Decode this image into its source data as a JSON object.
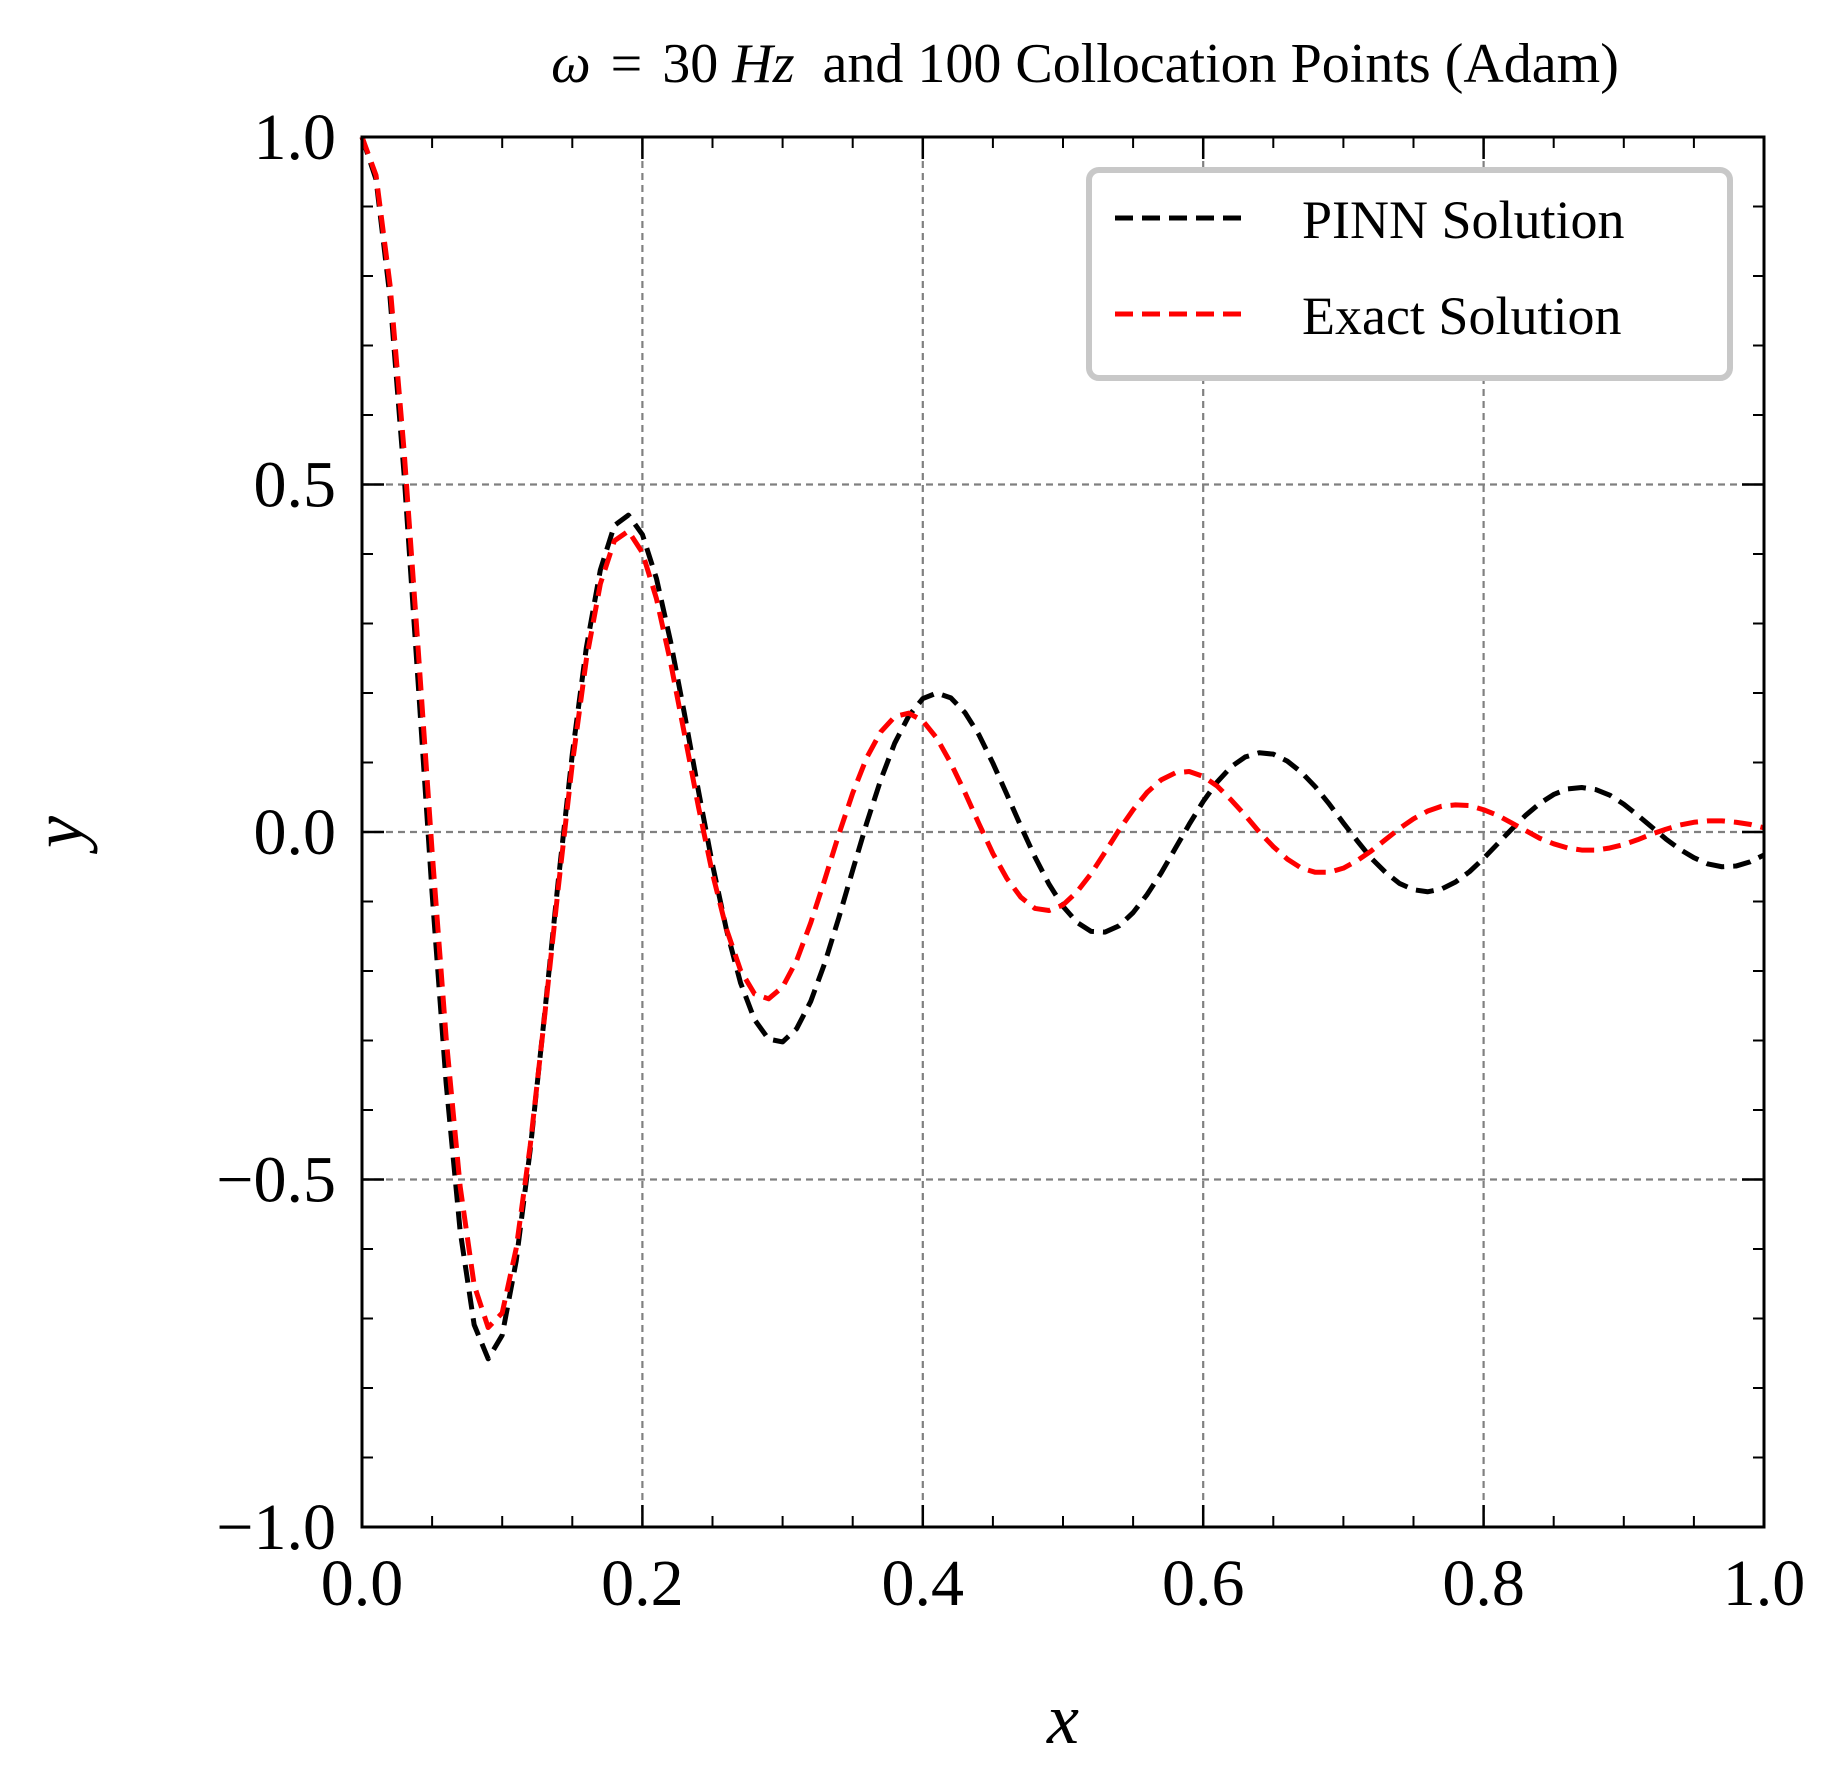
{
  "chart_data": {
    "type": "line",
    "title_parts": {
      "omega": "ω",
      "equals": "=",
      "value": "30",
      "unit": "Hz",
      "rest": "and 100 Collocation Points (Adam)"
    },
    "xlabel": "x",
    "ylabel": "y",
    "xlim": [
      0,
      1
    ],
    "ylim": [
      -1,
      1
    ],
    "x_ticks": [
      "0.0",
      "0.2",
      "0.4",
      "0.6",
      "0.8",
      "1.0"
    ],
    "y_ticks": [
      "1.0",
      "0.5",
      "0.0",
      "−0.5",
      "−1.0"
    ],
    "grid": true,
    "legend_position": "top-right",
    "series": [
      {
        "name": "PINN Solution",
        "color": "#000000",
        "style": "dashed",
        "x": [
          0,
          0.01,
          0.02,
          0.03,
          0.04,
          0.05,
          0.06,
          0.07,
          0.08,
          0.09,
          0.1,
          0.11,
          0.12,
          0.13,
          0.14,
          0.15,
          0.16,
          0.17,
          0.18,
          0.19,
          0.2,
          0.21,
          0.22,
          0.23,
          0.24,
          0.25,
          0.26,
          0.27,
          0.28,
          0.29,
          0.3,
          0.31,
          0.32,
          0.33,
          0.34,
          0.35,
          0.36,
          0.37,
          0.38,
          0.39,
          0.4,
          0.41,
          0.42,
          0.43,
          0.44,
          0.45,
          0.46,
          0.47,
          0.48,
          0.49,
          0.5,
          0.51,
          0.52,
          0.53,
          0.54,
          0.55,
          0.56,
          0.57,
          0.58,
          0.59,
          0.6,
          0.61,
          0.62,
          0.63,
          0.64,
          0.65,
          0.66,
          0.67,
          0.68,
          0.69,
          0.7,
          0.71,
          0.72,
          0.73,
          0.74,
          0.75,
          0.76,
          0.77,
          0.78,
          0.79,
          0.8,
          0.81,
          0.82,
          0.83,
          0.84,
          0.85,
          0.86,
          0.87,
          0.88,
          0.89,
          0.9,
          0.91,
          0.92,
          0.93,
          0.94,
          0.95,
          0.96,
          0.97,
          0.98,
          0.99,
          1.0
        ],
        "y": [
          1.0,
          0.939,
          0.769,
          0.515,
          0.216,
          -0.088,
          -0.361,
          -0.574,
          -0.709,
          -0.758,
          -0.724,
          -0.617,
          -0.457,
          -0.267,
          -0.07,
          0.112,
          0.265,
          0.377,
          0.441,
          0.456,
          0.428,
          0.365,
          0.275,
          0.17,
          0.059,
          -0.047,
          -0.141,
          -0.217,
          -0.27,
          -0.298,
          -0.302,
          -0.283,
          -0.244,
          -0.189,
          -0.124,
          -0.055,
          0.013,
          0.075,
          0.128,
          0.167,
          0.192,
          0.2,
          0.193,
          0.172,
          0.14,
          0.099,
          0.054,
          0.008,
          -0.036,
          -0.075,
          -0.107,
          -0.13,
          -0.143,
          -0.144,
          -0.135,
          -0.116,
          -0.09,
          -0.059,
          -0.024,
          0.011,
          0.044,
          0.072,
          0.094,
          0.108,
          0.114,
          0.112,
          0.102,
          0.086,
          0.065,
          0.04,
          0.013,
          -0.013,
          -0.038,
          -0.058,
          -0.074,
          -0.083,
          -0.086,
          -0.082,
          -0.072,
          -0.057,
          -0.038,
          -0.017,
          0.004,
          0.024,
          0.041,
          0.054,
          0.062,
          0.064,
          0.061,
          0.053,
          0.04,
          0.024,
          0.007,
          -0.01,
          -0.025,
          -0.037,
          -0.046,
          -0.05,
          -0.049,
          -0.043,
          -0.033
        ]
      },
      {
        "name": "Exact Solution",
        "color": "#ff0000",
        "style": "dashed",
        "x": [
          0,
          0.01,
          0.02,
          0.03,
          0.04,
          0.05,
          0.06,
          0.07,
          0.08,
          0.09,
          0.1,
          0.11,
          0.12,
          0.13,
          0.14,
          0.15,
          0.16,
          0.17,
          0.18,
          0.19,
          0.2,
          0.21,
          0.22,
          0.23,
          0.24,
          0.25,
          0.26,
          0.27,
          0.28,
          0.29,
          0.3,
          0.31,
          0.32,
          0.33,
          0.34,
          0.35,
          0.36,
          0.37,
          0.38,
          0.39,
          0.4,
          0.41,
          0.42,
          0.43,
          0.44,
          0.45,
          0.46,
          0.47,
          0.48,
          0.49,
          0.5,
          0.51,
          0.52,
          0.53,
          0.54,
          0.55,
          0.56,
          0.57,
          0.58,
          0.59,
          0.6,
          0.61,
          0.62,
          0.63,
          0.64,
          0.65,
          0.66,
          0.67,
          0.68,
          0.69,
          0.7,
          0.71,
          0.72,
          0.73,
          0.74,
          0.75,
          0.76,
          0.77,
          0.78,
          0.79,
          0.8,
          0.81,
          0.82,
          0.83,
          0.84,
          0.85,
          0.86,
          0.87,
          0.88,
          0.89,
          0.9,
          0.91,
          0.92,
          0.93,
          0.94,
          0.95,
          0.96,
          0.97,
          0.98,
          0.99,
          1.0
        ],
        "y": [
          1.0,
          0.945,
          0.787,
          0.549,
          0.265,
          -0.028,
          -0.296,
          -0.51,
          -0.652,
          -0.713,
          -0.692,
          -0.599,
          -0.451,
          -0.27,
          -0.08,
          0.098,
          0.248,
          0.357,
          0.419,
          0.433,
          0.402,
          0.336,
          0.245,
          0.141,
          0.036,
          -0.06,
          -0.14,
          -0.199,
          -0.233,
          -0.24,
          -0.223,
          -0.185,
          -0.131,
          -0.069,
          -0.004,
          0.056,
          0.107,
          0.144,
          0.166,
          0.171,
          0.16,
          0.135,
          0.099,
          0.057,
          0.012,
          -0.031,
          -0.067,
          -0.094,
          -0.11,
          -0.113,
          -0.105,
          -0.086,
          -0.06,
          -0.029,
          0.003,
          0.032,
          0.057,
          0.075,
          0.085,
          0.087,
          0.08,
          0.066,
          0.046,
          0.024,
          0.0,
          -0.021,
          -0.039,
          -0.052,
          -0.058,
          -0.058,
          -0.052,
          -0.041,
          -0.027,
          -0.011,
          0.005,
          0.019,
          0.03,
          0.037,
          0.039,
          0.038,
          0.032,
          0.024,
          0.013,
          0.002,
          -0.009,
          -0.017,
          -0.023,
          -0.026,
          -0.026,
          -0.023,
          -0.018,
          -0.011,
          -0.003,
          0.004,
          0.01,
          0.014,
          0.016,
          0.016,
          0.014,
          0.011,
          0.006
        ]
      }
    ]
  }
}
